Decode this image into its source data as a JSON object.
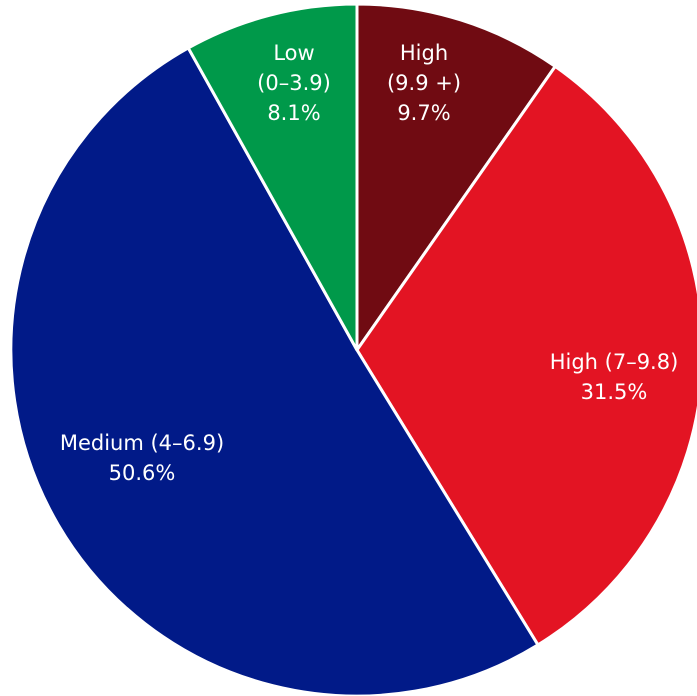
{
  "chart_data": {
    "type": "pie",
    "start_angle_deg": 0,
    "direction": "clockwise",
    "slices": [
      {
        "label": [
          "High",
          "(9.9 +)"
        ],
        "value": 9.7,
        "value_label": "9.7%",
        "color": "#700b12"
      },
      {
        "label": [
          "High (7–9.8)"
        ],
        "value": 31.5,
        "value_label": "31.5%",
        "color": "#e31423"
      },
      {
        "label": [
          "Medium (4–6.9)"
        ],
        "value": 50.6,
        "value_label": "50.6%",
        "color": "#011a88"
      },
      {
        "label": [
          "Low",
          "(0–3.9)"
        ],
        "value": 8.1,
        "value_label": "8.1%",
        "color": "#00994a"
      }
    ]
  }
}
